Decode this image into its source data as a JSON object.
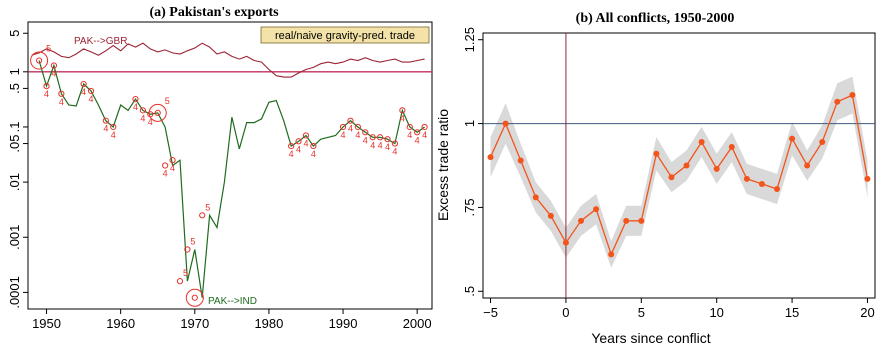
{
  "colors": {
    "gbr_line": "#9b2335",
    "ind_line": "#1f6b1f",
    "marker": "#e8302a",
    "hline_a": "#c0305a",
    "series_b": "#f2541b",
    "band_b": "#d9d9d9",
    "hline_b": "#3b5b80",
    "vline_b": "#8b2635"
  },
  "chart_data": [
    {
      "type": "line",
      "title": "(a) Pakistan's exports",
      "xlabel": "",
      "ylabel": "",
      "scale_y": "log",
      "xlim": [
        1947.5,
        2002
      ],
      "ylim": [
        5e-05,
        8
      ],
      "x_ticks": [
        1950,
        1960,
        1970,
        1980,
        1990,
        2000
      ],
      "y_ticks": [
        {
          "value": 5,
          "label": "5"
        },
        {
          "value": 1,
          "label": "1"
        },
        {
          "value": 0.5,
          "label": ".5"
        },
        {
          "value": 0.1,
          "label": ".1"
        },
        {
          "value": 0.05,
          "label": ".05"
        },
        {
          "value": 0.01,
          "label": ".01"
        },
        {
          "value": 0.001,
          "label": ".001"
        },
        {
          "value": 0.0001,
          "label": ".0001"
        }
      ],
      "reference_line_y": 1,
      "legend_text": "real/naive gravity-pred. trade",
      "legend_position": "top-right",
      "series": [
        {
          "name": "PAK-->GBR",
          "x": [
            1948,
            1949,
            1950,
            1951,
            1952,
            1953,
            1954,
            1955,
            1956,
            1957,
            1958,
            1959,
            1960,
            1961,
            1962,
            1963,
            1964,
            1965,
            1966,
            1967,
            1968,
            1969,
            1970,
            1971,
            1972,
            1973,
            1974,
            1975,
            1976,
            1977,
            1978,
            1979,
            1980,
            1981,
            1982,
            1983,
            1984,
            1985,
            1986,
            1987,
            1988,
            1989,
            1990,
            1991,
            1992,
            1993,
            1994,
            1995,
            1996,
            1997,
            1998,
            1999,
            2000,
            2001
          ],
          "y": [
            2.0,
            2.2,
            2.6,
            2.3,
            1.9,
            1.8,
            2.1,
            2.6,
            2.3,
            2.0,
            2.4,
            3.0,
            2.4,
            3.2,
            2.8,
            3.3,
            2.6,
            2.3,
            2.5,
            2.2,
            2.1,
            2.4,
            2.7,
            3.3,
            2.8,
            2.1,
            2.3,
            1.9,
            1.7,
            1.9,
            1.6,
            1.5,
            1.1,
            0.85,
            0.8,
            0.8,
            0.95,
            1.1,
            1.2,
            1.4,
            1.5,
            1.4,
            1.5,
            1.7,
            1.6,
            1.8,
            1.6,
            1.5,
            1.6,
            1.7,
            1.5,
            1.5,
            1.6,
            1.7
          ]
        },
        {
          "name": "PAK-->IND",
          "x": [
            1949,
            1950,
            1951,
            1952,
            1953,
            1954,
            1955,
            1956,
            1957,
            1958,
            1959,
            1960,
            1961,
            1962,
            1963,
            1964,
            1965,
            1966,
            1967,
            1968,
            1969,
            1970,
            1971,
            1972,
            1973,
            1974,
            1975,
            1976,
            1977,
            1978,
            1979,
            1980,
            1981,
            1982,
            1983,
            1984,
            1985,
            1986,
            1987,
            1988,
            1989,
            1990,
            1991,
            1992,
            1993,
            1994,
            1995,
            1996,
            1997,
            1998,
            1999,
            2000,
            2001
          ],
          "y": [
            1.6,
            0.55,
            1.3,
            0.4,
            0.25,
            0.24,
            0.6,
            0.45,
            0.25,
            0.13,
            0.1,
            0.25,
            0.2,
            0.32,
            0.2,
            0.17,
            0.18,
            0.1,
            0.02,
            0.025,
            0.00016,
            0.0006,
            8e-05,
            0.0025,
            0.0015,
            0.01,
            0.15,
            0.04,
            0.12,
            0.12,
            0.14,
            0.28,
            0.3,
            0.13,
            0.045,
            0.055,
            0.07,
            0.045,
            0.06,
            0.065,
            0.07,
            0.1,
            0.13,
            0.1,
            0.08,
            0.065,
            0.065,
            0.06,
            0.05,
            0.2,
            0.1,
            0.08,
            0.1
          ]
        }
      ],
      "annotations": [
        {
          "label": "5",
          "x": 1949,
          "y": 1.6,
          "circled": true
        },
        {
          "label": "4",
          "x": 1950,
          "y": 0.55
        },
        {
          "label": "4",
          "x": 1951,
          "y": 1.3
        },
        {
          "label": "4",
          "x": 1952,
          "y": 0.4
        },
        {
          "label": "4",
          "x": 1955,
          "y": 0.6
        },
        {
          "label": "4",
          "x": 1956,
          "y": 0.45
        },
        {
          "label": "4",
          "x": 1958,
          "y": 0.13
        },
        {
          "label": "4",
          "x": 1959,
          "y": 0.1
        },
        {
          "label": "4",
          "x": 1962,
          "y": 0.32
        },
        {
          "label": "4",
          "x": 1963,
          "y": 0.2
        },
        {
          "label": "4",
          "x": 1964,
          "y": 0.17
        },
        {
          "label": "5",
          "x": 1965,
          "y": 0.18,
          "circled": true
        },
        {
          "label": "4",
          "x": 1966,
          "y": 0.02
        },
        {
          "label": "4",
          "x": 1967,
          "y": 0.025
        },
        {
          "label": "5",
          "x": 1968,
          "y": 0.00016
        },
        {
          "label": "5",
          "x": 1969,
          "y": 0.0006
        },
        {
          "label": "",
          "x": 1970,
          "y": 8e-05,
          "circled": true
        },
        {
          "label": "5",
          "x": 1971,
          "y": 0.0025
        },
        {
          "label": "4",
          "x": 1983,
          "y": 0.045
        },
        {
          "label": "4",
          "x": 1984,
          "y": 0.055
        },
        {
          "label": "4",
          "x": 1985,
          "y": 0.07
        },
        {
          "label": "4",
          "x": 1986,
          "y": 0.045
        },
        {
          "label": "4",
          "x": 1990,
          "y": 0.1
        },
        {
          "label": "4",
          "x": 1991,
          "y": 0.13
        },
        {
          "label": "4",
          "x": 1992,
          "y": 0.1
        },
        {
          "label": "4",
          "x": 1993,
          "y": 0.08
        },
        {
          "label": "4",
          "x": 1994,
          "y": 0.065
        },
        {
          "label": "4",
          "x": 1995,
          "y": 0.065
        },
        {
          "label": "4",
          "x": 1996,
          "y": 0.06
        },
        {
          "label": "4",
          "x": 1997,
          "y": 0.05
        },
        {
          "label": "4",
          "x": 1998,
          "y": 0.2
        },
        {
          "label": "4",
          "x": 1999,
          "y": 0.1
        },
        {
          "label": "4",
          "x": 2000,
          "y": 0.08
        },
        {
          "label": "4",
          "x": 2001,
          "y": 0.1
        }
      ]
    },
    {
      "type": "line",
      "title": "(b) All conflicts, 1950-2000",
      "xlabel": "Years since conflict",
      "ylabel": "Excess trade ratio",
      "xlim": [
        -5.5,
        20.5
      ],
      "ylim": [
        0.48,
        1.27
      ],
      "x_ticks": [
        -5,
        0,
        5,
        10,
        15,
        20
      ],
      "y_ticks": [
        {
          "value": 0.5,
          "label": ".5"
        },
        {
          "value": 0.75,
          "label": ".75"
        },
        {
          "value": 1,
          "label": "1"
        },
        {
          "value": 1.25,
          "label": "1.25"
        }
      ],
      "reference_line_y": 1,
      "reference_line_x": 0,
      "grid": false,
      "series": [
        {
          "x": [
            -5,
            -4,
            -3,
            -2,
            -1,
            0,
            1,
            2,
            3,
            4,
            5,
            6,
            7,
            8,
            9,
            10,
            11,
            12,
            13,
            14,
            15,
            16,
            17,
            18,
            19,
            20
          ],
          "y": [
            0.9,
            1.0,
            0.89,
            0.78,
            0.725,
            0.645,
            0.71,
            0.745,
            0.61,
            0.71,
            0.71,
            0.91,
            0.84,
            0.875,
            0.945,
            0.865,
            0.93,
            0.835,
            0.82,
            0.805,
            0.955,
            0.875,
            0.945,
            1.065,
            1.085,
            0.835
          ],
          "lower": [
            0.84,
            0.94,
            0.84,
            0.735,
            0.68,
            0.6,
            0.665,
            0.7,
            0.57,
            0.665,
            0.665,
            0.86,
            0.795,
            0.83,
            0.9,
            0.82,
            0.885,
            0.79,
            0.775,
            0.76,
            0.905,
            0.83,
            0.895,
            1.01,
            1.03,
            0.78
          ],
          "upper": [
            0.96,
            1.06,
            0.94,
            0.825,
            0.77,
            0.69,
            0.755,
            0.79,
            0.65,
            0.755,
            0.755,
            0.96,
            0.885,
            0.92,
            0.99,
            0.91,
            0.975,
            0.88,
            0.865,
            0.85,
            1.005,
            0.92,
            0.995,
            1.12,
            1.14,
            0.89
          ]
        }
      ]
    }
  ]
}
